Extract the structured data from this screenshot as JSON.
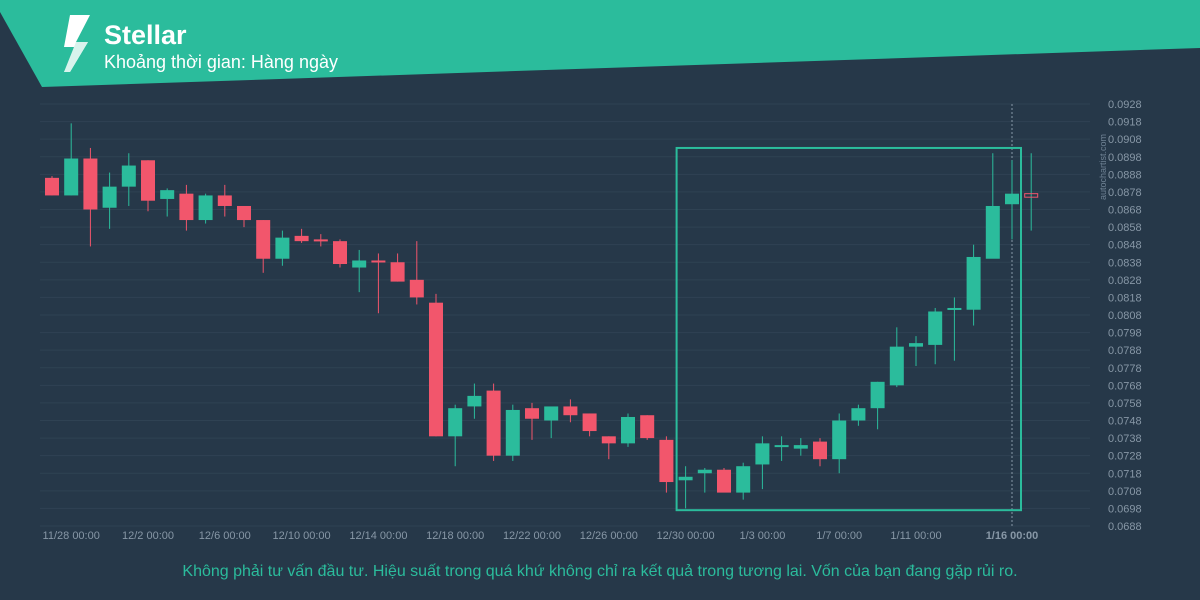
{
  "header": {
    "title": "Stellar",
    "subtitle": "Khoảng thời gian: Hàng ngày"
  },
  "watermark": "autochartist.com",
  "disclaimer": "Không phải tư vấn đầu tư. Hiệu suất trong quá khứ không chỉ ra kết quả trong tương lai. Vốn của bạn đang gặp rủi ro.",
  "colors": {
    "background": "#263849",
    "header": "#2bbc9c",
    "up": "#2bbc9c",
    "down": "#f2566c",
    "pattern_box": "#2bbc9c"
  },
  "chart_data": {
    "type": "candlestick",
    "ylim": [
      0.0688,
      0.0928
    ],
    "y_ticks": [
      "0.0928",
      "0.0918",
      "0.0908",
      "0.0898",
      "0.0888",
      "0.0878",
      "0.0868",
      "0.0858",
      "0.0848",
      "0.0838",
      "0.0828",
      "0.0818",
      "0.0808",
      "0.0798",
      "0.0788",
      "0.0778",
      "0.0768",
      "0.0758",
      "0.0748",
      "0.0738",
      "0.0728",
      "0.0718",
      "0.0708",
      "0.0698",
      "0.0688"
    ],
    "x_ticks": [
      {
        "label": "11/28 00:00",
        "bar": 1
      },
      {
        "label": "12/2 00:00",
        "bar": 5
      },
      {
        "label": "12/6 00:00",
        "bar": 9
      },
      {
        "label": "12/10 00:00",
        "bar": 13
      },
      {
        "label": "12/14 00:00",
        "bar": 17
      },
      {
        "label": "12/18 00:00",
        "bar": 21
      },
      {
        "label": "12/22 00:00",
        "bar": 25
      },
      {
        "label": "12/26 00:00",
        "bar": 29
      },
      {
        "label": "12/30 00:00",
        "bar": 33
      },
      {
        "label": "1/3 00:00",
        "bar": 37
      },
      {
        "label": "1/7 00:00",
        "bar": 41
      },
      {
        "label": "1/11 00:00",
        "bar": 45
      },
      {
        "label": "1/16 00:00",
        "bar": 50
      }
    ],
    "current_time_label": "1/16 00:00",
    "candles": [
      {
        "o": 0.0886,
        "h": 0.0887,
        "l": 0.0876,
        "c": 0.0876
      },
      {
        "o": 0.0876,
        "h": 0.0917,
        "l": 0.0876,
        "c": 0.0897
      },
      {
        "o": 0.0897,
        "h": 0.0903,
        "l": 0.0847,
        "c": 0.0868
      },
      {
        "o": 0.0869,
        "h": 0.0889,
        "l": 0.0857,
        "c": 0.0881
      },
      {
        "o": 0.0881,
        "h": 0.09,
        "l": 0.087,
        "c": 0.0893
      },
      {
        "o": 0.0896,
        "h": 0.0896,
        "l": 0.0867,
        "c": 0.0873
      },
      {
        "o": 0.0874,
        "h": 0.088,
        "l": 0.0864,
        "c": 0.0879
      },
      {
        "o": 0.0877,
        "h": 0.0882,
        "l": 0.0856,
        "c": 0.0862
      },
      {
        "o": 0.0862,
        "h": 0.0877,
        "l": 0.086,
        "c": 0.0876
      },
      {
        "o": 0.0876,
        "h": 0.0882,
        "l": 0.0864,
        "c": 0.087
      },
      {
        "o": 0.087,
        "h": 0.087,
        "l": 0.0858,
        "c": 0.0862
      },
      {
        "o": 0.0862,
        "h": 0.0862,
        "l": 0.0832,
        "c": 0.084
      },
      {
        "o": 0.084,
        "h": 0.0856,
        "l": 0.0836,
        "c": 0.0852
      },
      {
        "o": 0.0853,
        "h": 0.0857,
        "l": 0.0849,
        "c": 0.085
      },
      {
        "o": 0.0851,
        "h": 0.0854,
        "l": 0.0847,
        "c": 0.085
      },
      {
        "o": 0.085,
        "h": 0.0851,
        "l": 0.0835,
        "c": 0.0837
      },
      {
        "o": 0.0835,
        "h": 0.0845,
        "l": 0.0821,
        "c": 0.0839
      },
      {
        "o": 0.0839,
        "h": 0.0843,
        "l": 0.0809,
        "c": 0.0838
      },
      {
        "o": 0.0838,
        "h": 0.0843,
        "l": 0.0827,
        "c": 0.0827
      },
      {
        "o": 0.0828,
        "h": 0.085,
        "l": 0.0814,
        "c": 0.0818
      },
      {
        "o": 0.0815,
        "h": 0.082,
        "l": 0.0739,
        "c": 0.0739
      },
      {
        "o": 0.0739,
        "h": 0.0757,
        "l": 0.0722,
        "c": 0.0755
      },
      {
        "o": 0.0756,
        "h": 0.0769,
        "l": 0.0749,
        "c": 0.0762
      },
      {
        "o": 0.0765,
        "h": 0.0769,
        "l": 0.0725,
        "c": 0.0728
      },
      {
        "o": 0.0728,
        "h": 0.0757,
        "l": 0.0725,
        "c": 0.0754
      },
      {
        "o": 0.0755,
        "h": 0.0758,
        "l": 0.0737,
        "c": 0.0749
      },
      {
        "o": 0.0748,
        "h": 0.0754,
        "l": 0.0738,
        "c": 0.0756
      },
      {
        "o": 0.0756,
        "h": 0.076,
        "l": 0.0747,
        "c": 0.0751
      },
      {
        "o": 0.0752,
        "h": 0.0752,
        "l": 0.0739,
        "c": 0.0742
      },
      {
        "o": 0.0739,
        "h": 0.0739,
        "l": 0.0726,
        "c": 0.0735
      },
      {
        "o": 0.0735,
        "h": 0.0752,
        "l": 0.0733,
        "c": 0.075
      },
      {
        "o": 0.0751,
        "h": 0.0751,
        "l": 0.0737,
        "c": 0.0738
      },
      {
        "o": 0.0737,
        "h": 0.0739,
        "l": 0.0707,
        "c": 0.0713
      },
      {
        "o": 0.0714,
        "h": 0.0722,
        "l": 0.0698,
        "c": 0.0716
      },
      {
        "o": 0.0718,
        "h": 0.0721,
        "l": 0.0707,
        "c": 0.072
      },
      {
        "o": 0.072,
        "h": 0.0721,
        "l": 0.0709,
        "c": 0.0707
      },
      {
        "o": 0.0707,
        "h": 0.0724,
        "l": 0.0703,
        "c": 0.0722
      },
      {
        "o": 0.0723,
        "h": 0.0739,
        "l": 0.0709,
        "c": 0.0735
      },
      {
        "o": 0.0734,
        "h": 0.0739,
        "l": 0.0725,
        "c": 0.0734
      },
      {
        "o": 0.0732,
        "h": 0.0738,
        "l": 0.0728,
        "c": 0.0734
      },
      {
        "o": 0.0736,
        "h": 0.0738,
        "l": 0.0722,
        "c": 0.0726
      },
      {
        "o": 0.0726,
        "h": 0.0752,
        "l": 0.0718,
        "c": 0.0748
      },
      {
        "o": 0.0748,
        "h": 0.0757,
        "l": 0.0745,
        "c": 0.0755
      },
      {
        "o": 0.0755,
        "h": 0.077,
        "l": 0.0743,
        "c": 0.077
      },
      {
        "o": 0.0768,
        "h": 0.0801,
        "l": 0.0767,
        "c": 0.079
      },
      {
        "o": 0.079,
        "h": 0.0796,
        "l": 0.0779,
        "c": 0.0792
      },
      {
        "o": 0.0791,
        "h": 0.0812,
        "l": 0.078,
        "c": 0.081
      },
      {
        "o": 0.0811,
        "h": 0.0818,
        "l": 0.0782,
        "c": 0.0812
      },
      {
        "o": 0.0811,
        "h": 0.0848,
        "l": 0.0802,
        "c": 0.0841
      },
      {
        "o": 0.084,
        "h": 0.09,
        "l": 0.0841,
        "c": 0.087
      },
      {
        "o": 0.0871,
        "h": 0.0896,
        "l": 0.0851,
        "c": 0.0877
      },
      {
        "o": 0.0875,
        "h": 0.09,
        "l": 0.0856,
        "c": 0.0877
      }
    ],
    "pattern_box": {
      "start_bar": 33,
      "end_bar": 50,
      "top": 0.0903,
      "bottom": 0.0697
    }
  }
}
